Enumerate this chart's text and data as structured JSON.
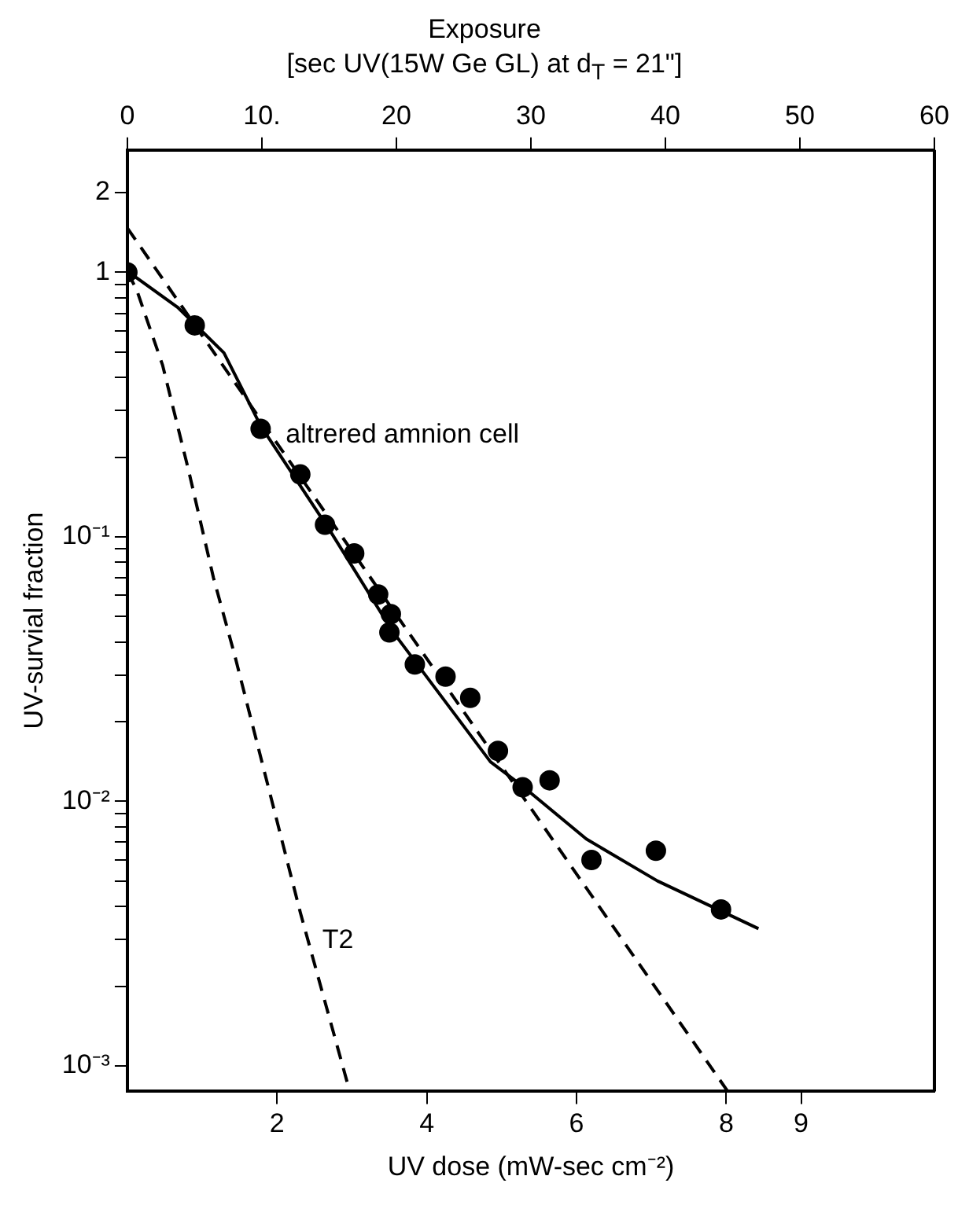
{
  "chart_data": {
    "type": "scatter",
    "xlabel": "UV dose (mW-sec cm⁻²)",
    "ylabel": "UV-survial fraction",
    "x2label": "Exposure\n[sec UV(15W Ge GL) at d$_{T}$ = 21\"]",
    "log": "y",
    "grid": false,
    "legend": false,
    "xlim": [
      0,
      10.78
    ],
    "xticks": [
      2,
      4,
      6,
      8,
      9
    ],
    "x2lim": [
      0,
      60
    ],
    "x2ticks": [
      0,
      {
        "value": 10,
        "label": "10."
      },
      20,
      30,
      40,
      50,
      60
    ],
    "ylim": [
      0.0008,
      2.9
    ],
    "yticks": [
      {
        "value": 0.001,
        "label": "10⁻³"
      },
      {
        "value": 0.002,
        "label": null
      },
      {
        "value": 0.003,
        "label": null
      },
      {
        "value": 0.004,
        "label": null
      },
      {
        "value": 0.005,
        "label": null
      },
      {
        "value": 0.006,
        "label": null
      },
      {
        "value": 0.007,
        "label": null
      },
      {
        "value": 0.008,
        "label": null
      },
      {
        "value": 0.009,
        "label": null
      },
      {
        "value": 0.01,
        "label": "10⁻²"
      },
      {
        "value": 0.02,
        "label": null
      },
      {
        "value": 0.03,
        "label": null
      },
      {
        "value": 0.04,
        "label": null
      },
      {
        "value": 0.05,
        "label": null
      },
      {
        "value": 0.06,
        "label": null
      },
      {
        "value": 0.07,
        "label": null
      },
      {
        "value": 0.08,
        "label": null
      },
      {
        "value": 0.09,
        "label": null
      },
      {
        "value": 0.1,
        "label": "10⁻¹"
      },
      {
        "value": 0.2,
        "label": null
      },
      {
        "value": 0.3,
        "label": null
      },
      {
        "value": 0.4,
        "label": null
      },
      {
        "value": 0.5,
        "label": null
      },
      {
        "value": 0.6,
        "label": null
      },
      {
        "value": 0.7,
        "label": null
      },
      {
        "value": 0.8,
        "label": null
      },
      {
        "value": 0.9,
        "label": null
      },
      1,
      2
    ],
    "series": [
      {
        "marker": "circle",
        "color": "#000000",
        "x": [
          0,
          0.9,
          1.78,
          2.31,
          2.64,
          3.03,
          3.35,
          3.52,
          3.5,
          3.84,
          4.25,
          4.58,
          4.95,
          5.28,
          5.64,
          6.2,
          7.06,
          7.93
        ],
        "values": [
          1.0,
          0.63,
          0.256,
          0.172,
          0.111,
          0.0865,
          0.0605,
          0.051,
          0.0435,
          0.0329,
          0.0296,
          0.0246,
          0.0155,
          0.0113,
          0.012,
          0.006,
          0.0065,
          0.0039
        ]
      },
      {
        "type": "line",
        "name": "altrered amnion cell",
        "marker": "none",
        "line_style": "solid",
        "color": "#000000",
        "x": [
          0,
          0.67,
          1.29,
          1.78,
          2.72,
          3.54,
          4.85,
          5.28,
          6.13,
          7.08,
          8.43
        ],
        "values": [
          1.01,
          0.738,
          0.496,
          0.263,
          0.104,
          0.044,
          0.0141,
          0.0114,
          0.0072,
          0.005,
          0.0033
        ]
      },
      {
        "type": "line",
        "marker": "none",
        "line_style": "dashed",
        "color": "#000000",
        "x": [
          0,
          8.02
        ],
        "values": [
          1.47,
          0.0008
        ]
      },
      {
        "type": "line",
        "name": "T2",
        "marker": "none",
        "line_style": "dashed",
        "color": "#000000",
        "x": [
          0,
          0.12,
          0.47,
          0.82,
          1.15,
          1.43,
          2.31,
          2.97
        ],
        "values": [
          1.0,
          0.865,
          0.446,
          0.177,
          0.07,
          0.036,
          0.0038,
          0.0008
        ]
      }
    ]
  }
}
